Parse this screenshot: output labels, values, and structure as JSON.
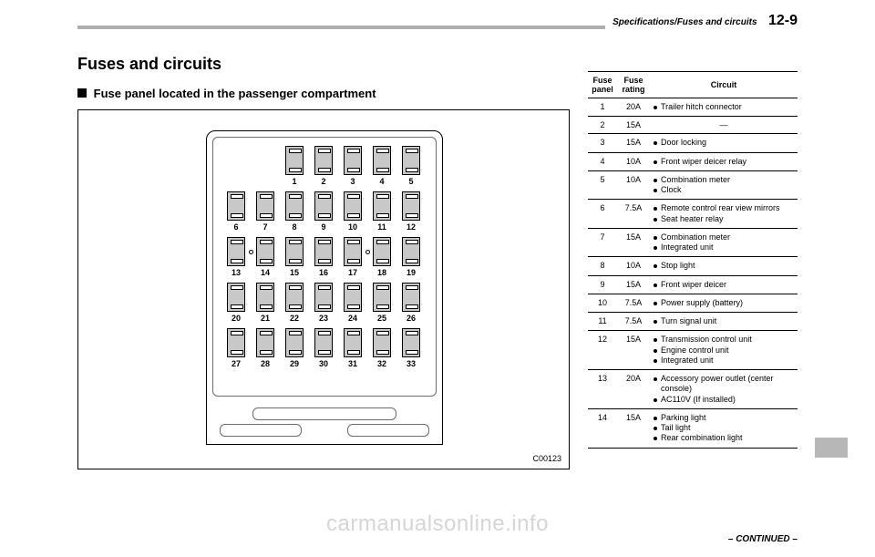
{
  "header": {
    "section": "Specifications/Fuses and circuits",
    "pagenum": "12-9"
  },
  "titles": {
    "main": "Fuses and circuits",
    "sub": "Fuse panel located in the passenger compartment"
  },
  "figure": {
    "code": "C00123",
    "rows": [
      {
        "offset": true,
        "cells": [
          "",
          "",
          "1",
          "2",
          "3",
          "4",
          "5"
        ]
      },
      {
        "offset": false,
        "cells": [
          "6",
          "7",
          "8",
          "9",
          "10",
          "11",
          "12"
        ]
      },
      {
        "offset": false,
        "cells": [
          "13",
          "14",
          "15",
          "16",
          "17",
          "18",
          "19"
        ],
        "dots": [
          1,
          5
        ]
      },
      {
        "offset": false,
        "cells": [
          "20",
          "21",
          "22",
          "23",
          "24",
          "25",
          "26"
        ]
      },
      {
        "offset": false,
        "cells": [
          "27",
          "28",
          "29",
          "30",
          "31",
          "32",
          "33"
        ]
      }
    ]
  },
  "table": {
    "headers": [
      "Fuse panel",
      "Fuse rating",
      "Circuit"
    ],
    "rows": [
      {
        "panel": "1",
        "rating": "20A",
        "items": [
          "Trailer hitch connector"
        ]
      },
      {
        "panel": "2",
        "rating": "15A",
        "dash": "—"
      },
      {
        "panel": "3",
        "rating": "15A",
        "items": [
          "Door locking"
        ]
      },
      {
        "panel": "4",
        "rating": "10A",
        "items": [
          "Front wiper deicer relay"
        ]
      },
      {
        "panel": "5",
        "rating": "10A",
        "items": [
          "Combination meter",
          "Clock"
        ]
      },
      {
        "panel": "6",
        "rating": "7.5A",
        "items": [
          "Remote control rear view mirrors",
          "Seat heater relay"
        ]
      },
      {
        "panel": "7",
        "rating": "15A",
        "items": [
          "Combination meter",
          "Integrated unit"
        ]
      },
      {
        "panel": "8",
        "rating": "10A",
        "items": [
          "Stop light"
        ]
      },
      {
        "panel": "9",
        "rating": "15A",
        "items": [
          "Front wiper deicer"
        ]
      },
      {
        "panel": "10",
        "rating": "7.5A",
        "items": [
          "Power supply (battery)"
        ]
      },
      {
        "panel": "11",
        "rating": "7.5A",
        "items": [
          "Turn signal unit"
        ]
      },
      {
        "panel": "12",
        "rating": "15A",
        "items": [
          "Transmission control unit",
          "Engine control unit",
          "Integrated unit"
        ]
      },
      {
        "panel": "13",
        "rating": "20A",
        "items": [
          "Accessory power outlet (center console)",
          "AC110V (If installed)"
        ]
      },
      {
        "panel": "14",
        "rating": "15A",
        "items": [
          "Parking light",
          "Tail light",
          "Rear combination light"
        ]
      }
    ]
  },
  "footer": {
    "continued": "– CONTINUED –",
    "watermark": "carmanualsonline.info"
  },
  "colors": {
    "rule": "#aeaeae",
    "fuse_fill": "#c8c8c8",
    "watermark": "#d6d6d6",
    "tab": "#b7b7b7"
  }
}
